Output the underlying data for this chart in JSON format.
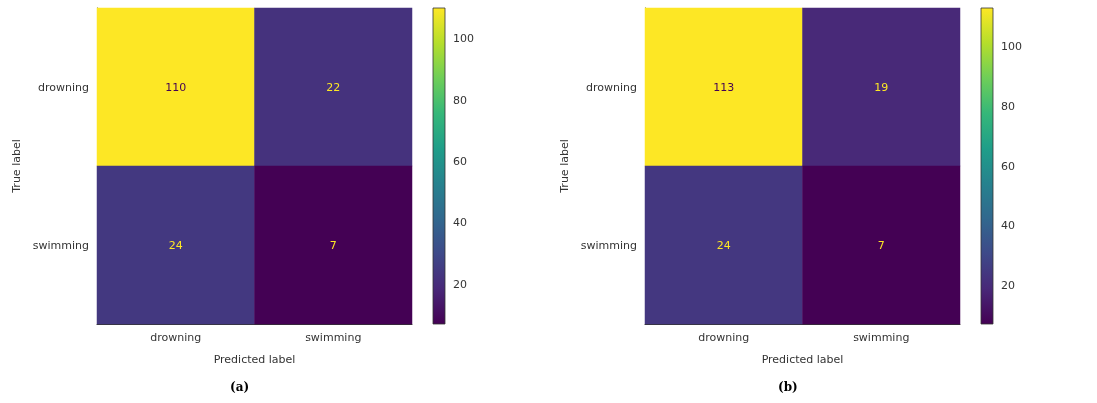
{
  "chart_data": [
    {
      "type": "heatmap",
      "categories": [
        "drowning",
        "swimming"
      ],
      "y_categories": [
        "drowning",
        "swimming"
      ],
      "cells": [
        [
          110,
          22
        ],
        [
          24,
          7
        ]
      ],
      "xlabel": "Predicted label",
      "ylabel": "True label",
      "clim": [
        7,
        110
      ],
      "cticks": [
        20,
        40,
        60,
        80,
        100
      ],
      "data_labels": true,
      "annotations": [
        "(a)"
      ]
    },
    {
      "type": "heatmap",
      "categories": [
        "drowning",
        "swimming"
      ],
      "y_categories": [
        "drowning",
        "swimming"
      ],
      "cells": [
        [
          113,
          19
        ],
        [
          24,
          7
        ]
      ],
      "xlabel": "Predicted label",
      "ylabel": "True label",
      "clim": [
        7,
        113
      ],
      "cticks": [
        20,
        40,
        60,
        80,
        100
      ],
      "data_labels": true,
      "annotations": [
        "(b)"
      ]
    }
  ]
}
